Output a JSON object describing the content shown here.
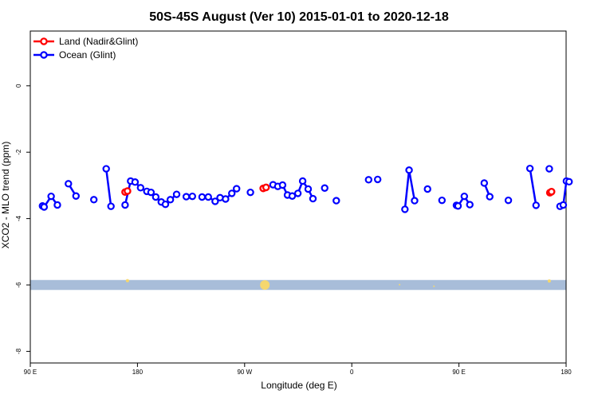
{
  "chart_data": {
    "type": "line",
    "title": "50S-45S August (Ver 10)   2015-01-01 to 2020-12-18",
    "xlabel": "Longitude (deg E)",
    "ylabel": "XCO2 - MLO trend (ppm)",
    "xlim": [
      90,
      450
    ],
    "ylim": [
      -8.35,
      1.65
    ],
    "x_ticks": [
      {
        "value": 90,
        "label": "90 E"
      },
      {
        "value": 162,
        "label": "180"
      },
      {
        "value": 234,
        "label": "90 W"
      },
      {
        "value": 306,
        "label": "0"
      },
      {
        "value": 378,
        "label": "90 E"
      },
      {
        "value": 450,
        "label": "180"
      }
    ],
    "y_ticks": [
      {
        "value": 0,
        "label": "0"
      },
      {
        "value": -2,
        "label": "-2"
      },
      {
        "value": -4,
        "label": "-4"
      },
      {
        "value": -6,
        "label": "-6"
      },
      {
        "value": -8,
        "label": "-8"
      }
    ],
    "grid": false,
    "legend_position": "top-left",
    "band": {
      "y_from": -6.15,
      "y_to": -5.85,
      "color": "#a8bdd9"
    },
    "band_markers": {
      "color": "#f5d76e",
      "points": [
        {
          "x": 155.3,
          "y": -5.87,
          "size": 2
        },
        {
          "x": 247.6,
          "y": -6.0,
          "size": 6
        },
        {
          "x": 338.1,
          "y": -5.99,
          "size": 1
        },
        {
          "x": 361.2,
          "y": -6.04,
          "size": 1
        },
        {
          "x": 438.7,
          "y": -5.88,
          "size": 2
        }
      ]
    },
    "series": [
      {
        "name": "Land (Nadir&Glint)",
        "color": "#ff0000",
        "points": [
          {
            "x": 153.7,
            "y": -3.2
          },
          {
            "x": 155.3,
            "y": -3.17
          },
          {
            "x": 246.5,
            "y": -3.09
          },
          {
            "x": 248.4,
            "y": -3.06
          },
          {
            "x": 439.1,
            "y": -3.22
          },
          {
            "x": 440.2,
            "y": -3.19
          }
        ],
        "segments": [
          [
            0,
            1
          ],
          [
            2,
            3
          ],
          [
            4,
            5
          ]
        ]
      },
      {
        "name": "Ocean (Glint)",
        "color": "#0000ff",
        "points": [
          {
            "x": 98.2,
            "y": -3.62
          },
          {
            "x": 99.3,
            "y": -3.65
          },
          {
            "x": 104.0,
            "y": -3.33
          },
          {
            "x": 108.2,
            "y": -3.59
          },
          {
            "x": 115.6,
            "y": -2.95
          },
          {
            "x": 120.7,
            "y": -3.32
          },
          {
            "x": 132.7,
            "y": -3.43
          },
          {
            "x": 141.0,
            "y": -2.5
          },
          {
            "x": 144.2,
            "y": -3.63
          },
          {
            "x": 153.7,
            "y": -3.59
          },
          {
            "x": 157.4,
            "y": -2.87
          },
          {
            "x": 160.4,
            "y": -2.9
          },
          {
            "x": 164.1,
            "y": -3.07
          },
          {
            "x": 168.3,
            "y": -3.18
          },
          {
            "x": 171.1,
            "y": -3.21
          },
          {
            "x": 174.3,
            "y": -3.35
          },
          {
            "x": 178.0,
            "y": -3.5
          },
          {
            "x": 180.8,
            "y": -3.57
          },
          {
            "x": 184.1,
            "y": -3.43
          },
          {
            "x": 188.3,
            "y": -3.27
          },
          {
            "x": 194.8,
            "y": -3.34
          },
          {
            "x": 198.9,
            "y": -3.33
          },
          {
            "x": 205.4,
            "y": -3.35
          },
          {
            "x": 209.6,
            "y": -3.35
          },
          {
            "x": 214.2,
            "y": -3.48
          },
          {
            "x": 217.5,
            "y": -3.37
          },
          {
            "x": 221.2,
            "y": -3.41
          },
          {
            "x": 225.4,
            "y": -3.24
          },
          {
            "x": 228.6,
            "y": -3.1
          },
          {
            "x": 237.9,
            "y": -3.21
          },
          {
            "x": 253.1,
            "y": -2.98
          },
          {
            "x": 256.3,
            "y": -3.03
          },
          {
            "x": 259.5,
            "y": -2.99
          },
          {
            "x": 262.8,
            "y": -3.29
          },
          {
            "x": 266.0,
            "y": -3.32
          },
          {
            "x": 269.8,
            "y": -3.24
          },
          {
            "x": 273.0,
            "y": -2.87
          },
          {
            "x": 276.7,
            "y": -3.11
          },
          {
            "x": 279.9,
            "y": -3.4
          },
          {
            "x": 287.8,
            "y": -3.08
          },
          {
            "x": 295.6,
            "y": -3.46
          },
          {
            "x": 323.4,
            "y": -2.82
          },
          {
            "x": 317.3,
            "y": -2.83
          },
          {
            "x": 317.3,
            "y": -2.83
          },
          {
            "x": 317.3,
            "y": -2.83
          },
          {
            "x": 317.3,
            "y": -2.83
          },
          {
            "x": 317.3,
            "y": -2.83
          },
          {
            "x": 317.3,
            "y": -2.83
          },
          {
            "x": 317.3,
            "y": -2.83
          },
          {
            "x": 317.3,
            "y": -2.83
          },
          {
            "x": 317.3,
            "y": -2.83
          },
          {
            "x": 317.3,
            "y": -2.83
          },
          {
            "x": 317.3,
            "y": -2.83
          },
          {
            "x": 317.3,
            "y": -2.83
          }
        ],
        "segments": []
      }
    ]
  }
}
